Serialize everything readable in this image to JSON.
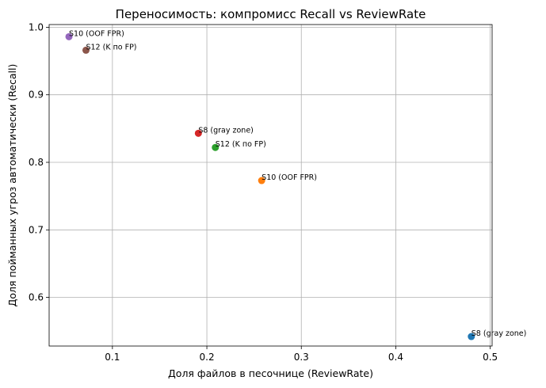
{
  "chart_data": {
    "type": "scatter",
    "title": "Переносимость: компромисс Recall vs ReviewRate",
    "xlabel": "Доля файлов в песочнице (ReviewRate)",
    "ylabel": "Доля пойманных угроз автоматически (Recall)",
    "xlim": [
      0.033,
      0.502
    ],
    "ylim": [
      0.528,
      1.004
    ],
    "xticks": [
      0.1,
      0.2,
      0.3,
      0.4,
      0.5
    ],
    "yticks": [
      0.6,
      0.7,
      0.8,
      0.9,
      1.0
    ],
    "xtick_labels": [
      "0.1",
      "0.2",
      "0.3",
      "0.4",
      "0.5"
    ],
    "ytick_labels": [
      "0.6",
      "0.7",
      "0.8",
      "0.9",
      "1.0"
    ],
    "grid": true,
    "points": [
      {
        "label": "S8 (gray zone)",
        "x": 0.48,
        "y": 0.542,
        "color": "#1f77b4"
      },
      {
        "label": "S10 (OOF FPR)",
        "x": 0.258,
        "y": 0.773,
        "color": "#ff7f0e"
      },
      {
        "label": "S12 (K по FP)",
        "x": 0.209,
        "y": 0.822,
        "color": "#2ca02c"
      },
      {
        "label": "S8 (gray zone)",
        "x": 0.191,
        "y": 0.843,
        "color": "#d62728"
      },
      {
        "label": "S10 (OOF FPR)",
        "x": 0.054,
        "y": 0.986,
        "color": "#9467bd"
      },
      {
        "label": "S12 (K по FP)",
        "x": 0.072,
        "y": 0.966,
        "color": "#8c564b"
      }
    ]
  }
}
